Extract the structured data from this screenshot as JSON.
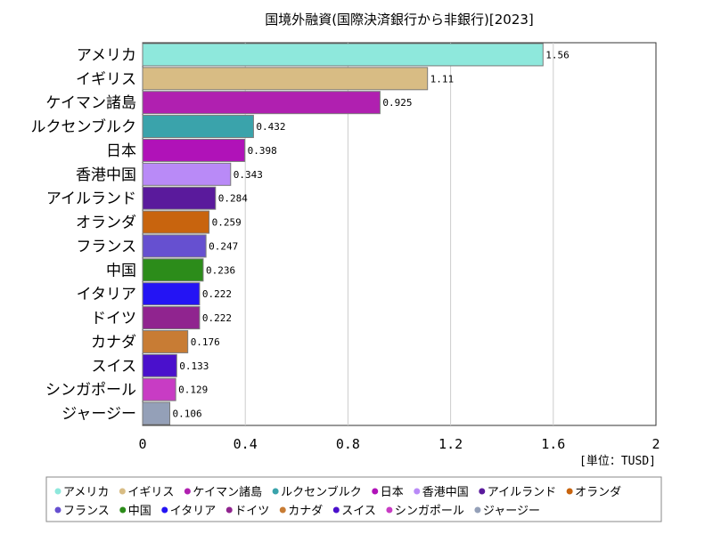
{
  "chart_data": {
    "type": "bar",
    "orientation": "horizontal",
    "title": "国境外融資(国際決済銀行から非銀行)[2023]",
    "unit_label": "[単位：TUSD]",
    "xlim": [
      0,
      2
    ],
    "x_ticks": [
      "0",
      "0.4",
      "0.8",
      "1.2",
      "1.6",
      "2"
    ],
    "x_tick_values": [
      0,
      0.4,
      0.8,
      1.2,
      1.6,
      2
    ],
    "grid": true,
    "legend_placement": "bottom",
    "categories": [
      "アメリカ",
      "イギリス",
      "ケイマン諸島",
      "ルクセンブルク",
      "日本",
      "香港中国",
      "アイルランド",
      "オランダ",
      "フランス",
      "中国",
      "イタリア",
      "ドイツ",
      "カナダ",
      "スイス",
      "シンガポール",
      "ジャージー"
    ],
    "values": [
      1.56,
      1.11,
      0.925,
      0.432,
      0.398,
      0.343,
      0.284,
      0.259,
      0.247,
      0.236,
      0.222,
      0.222,
      0.176,
      0.133,
      0.129,
      0.106
    ],
    "value_labels": [
      "1.56",
      "1.11",
      "0.925",
      "0.432",
      "0.398",
      "0.343",
      "0.284",
      "0.259",
      "0.247",
      "0.236",
      "0.222",
      "0.222",
      "0.176",
      "0.133",
      "0.129",
      "0.106"
    ],
    "colors": [
      "#8ee8dc",
      "#d8bc84",
      "#b020b0",
      "#3aa3ab",
      "#b012b8",
      "#b98af7",
      "#5a1a9c",
      "#c8640e",
      "#6650d0",
      "#2c8c1a",
      "#2414f4",
      "#90248f",
      "#c87c34",
      "#4a10cc",
      "#c83cc4",
      "#94a0b8"
    ]
  }
}
